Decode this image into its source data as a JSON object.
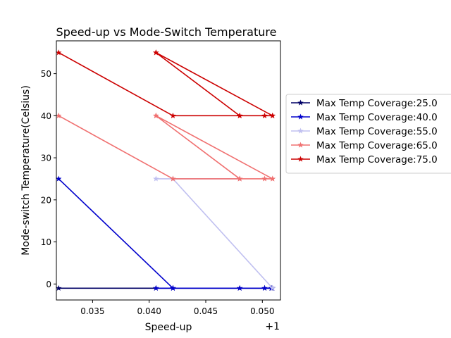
{
  "chart_data": {
    "type": "line",
    "title": "Speed-up vs Mode-Switch Temperature",
    "xlabel": "Speed-up",
    "ylabel": "Mode-switch Temperature(Celsius)",
    "x_offset_label": "+1",
    "xlim": [
      1.0318,
      1.0516
    ],
    "ylim": [
      -3.8,
      57.8
    ],
    "x_ticks": [
      1.035,
      1.04,
      1.045,
      1.05
    ],
    "x_tick_labels": [
      "0.035",
      "0.040",
      "0.045",
      "0.050"
    ],
    "y_ticks": [
      0,
      10,
      20,
      30,
      40,
      50
    ],
    "y_tick_labels": [
      "0",
      "10",
      "20",
      "30",
      "40",
      "50"
    ],
    "grid": false,
    "legend_position": "right, outside plot",
    "marker": "star",
    "series": [
      {
        "name": "Max Temp Coverage:25.0",
        "color": "#000066",
        "x": [
          1.032,
          1.0406,
          1.0421,
          1.048,
          1.0502,
          1.0508,
          1.0508,
          1.0509
        ],
        "y": [
          -1,
          -1,
          -1,
          -1,
          -1,
          -1,
          -1,
          -1
        ]
      },
      {
        "name": "Max Temp Coverage:40.0",
        "color": "#0000cc",
        "x": [
          1.032,
          1.0421,
          1.0421,
          1.0406,
          1.048,
          1.0502,
          1.0508,
          1.0509
        ],
        "y": [
          25,
          -1,
          -1,
          -1,
          -1,
          -1,
          -1,
          -1
        ]
      },
      {
        "name": "Max Temp Coverage:55.0",
        "color": "#c0c0f0",
        "x": [
          1.0406,
          1.0421,
          1.048,
          1.0421,
          1.0509
        ],
        "y": [
          25,
          25,
          25,
          25,
          -1
        ]
      },
      {
        "name": "Max Temp Coverage:65.0",
        "color": "#f07070",
        "x": [
          1.032,
          1.0421,
          1.048,
          1.0406,
          1.0509,
          1.0406,
          1.048,
          1.0502,
          1.0509
        ],
        "y": [
          40,
          25,
          25,
          40,
          25,
          40,
          25,
          25,
          25
        ]
      },
      {
        "name": "Max Temp Coverage:75.0",
        "color": "#cc0000",
        "x": [
          1.032,
          1.0421,
          1.048,
          1.0406,
          1.0509,
          1.0406,
          1.048,
          1.0502,
          1.0509
        ],
        "y": [
          55,
          40,
          40,
          55,
          40,
          55,
          40,
          40,
          40
        ]
      }
    ]
  }
}
